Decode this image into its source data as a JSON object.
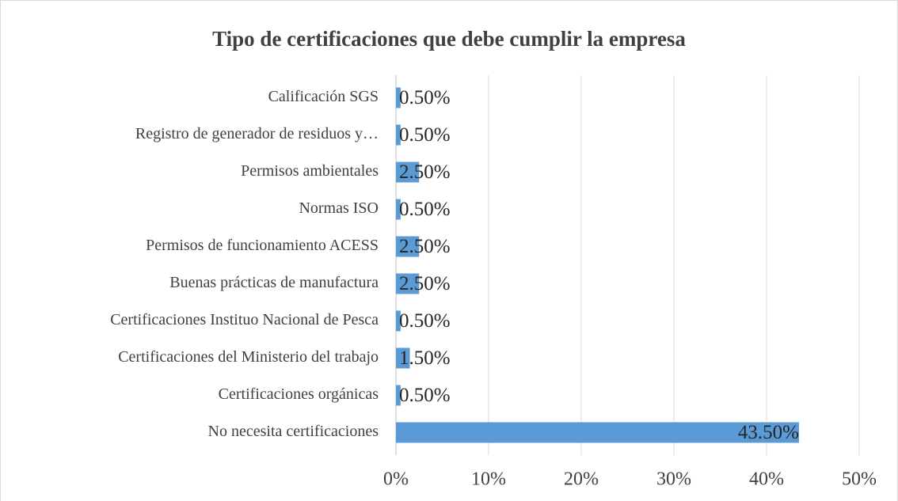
{
  "chart_data": {
    "type": "bar",
    "orientation": "horizontal",
    "title": "Tipo de certificaciones que debe cumplir la empresa",
    "categories": [
      "Calificación SGS",
      "Registro de generador de residuos y…",
      "Permisos ambientales",
      "Normas ISO",
      "Permisos de funcionamiento ACESS",
      "Buenas prácticas de manufactura",
      "Certificaciones Instituo Nacional de Pesca",
      "Certificaciones del Ministerio del trabajo",
      "Certificaciones orgánicas",
      "No necesita certificaciones"
    ],
    "values": [
      0.5,
      0.5,
      2.5,
      0.5,
      2.5,
      2.5,
      0.5,
      1.5,
      0.5,
      43.5
    ],
    "value_labels": [
      "0.50%",
      "0.50%",
      "2.50%",
      "0.50%",
      "2.50%",
      "2.50%",
      "0.50%",
      "1.50%",
      "0.50%",
      "43.50%"
    ],
    "color": "#5b9bd5",
    "xlim": [
      0,
      50
    ],
    "xticks": [
      {
        "value": 0,
        "label": "0%"
      },
      {
        "value": 10,
        "label": "10%"
      },
      {
        "value": 20,
        "label": "20%"
      },
      {
        "value": 30,
        "label": "30%"
      },
      {
        "value": 40,
        "label": "40%"
      },
      {
        "value": 50,
        "label": "50%"
      }
    ],
    "grid": true
  }
}
